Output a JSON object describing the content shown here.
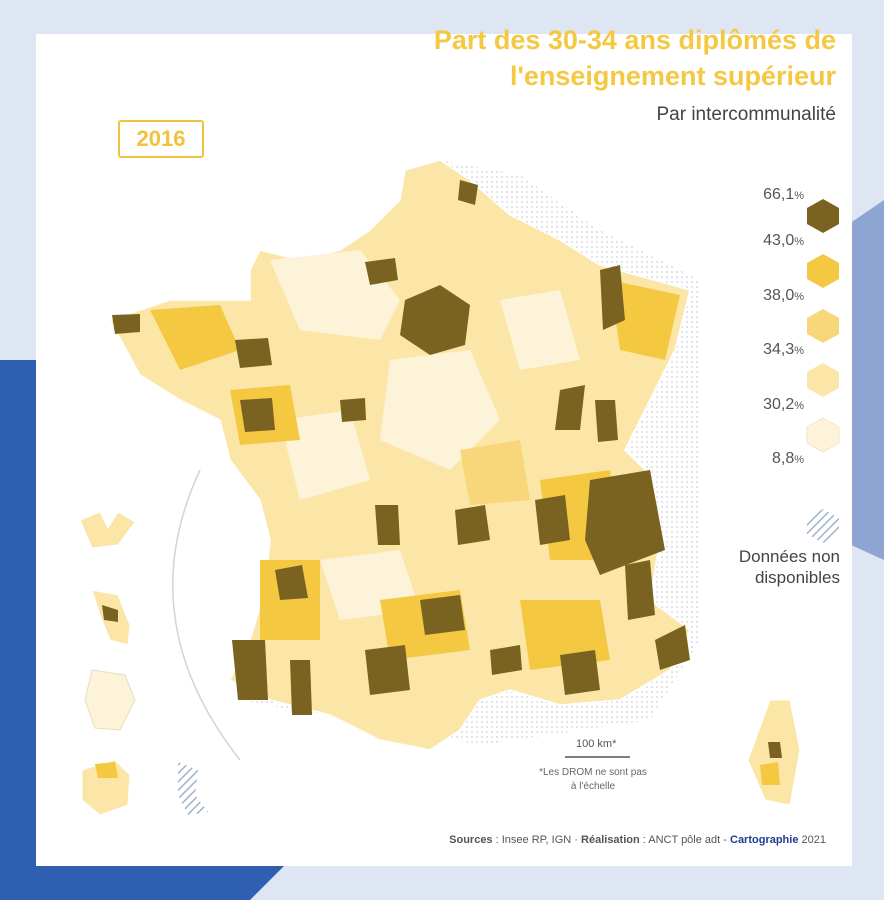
{
  "title_line1": "Part des 30-34 ans diplômés de",
  "title_line2": "l'enseignement supérieur",
  "subtitle": "Par intercommunalité",
  "year": "2016",
  "colors": {
    "title": "#f5c842",
    "class_1": "#7a6320",
    "class_2": "#f5c842",
    "class_3": "#f8d77a",
    "class_4": "#fbe6a8",
    "class_5": "#fdf3d8",
    "background_blue": "#2f5fb0",
    "background_light": "#dfe6f3"
  },
  "legend": {
    "breaks": [
      {
        "value": "66,1",
        "unit": "%"
      },
      {
        "value": "43,0",
        "unit": "%"
      },
      {
        "value": "38,0",
        "unit": "%"
      },
      {
        "value": "34,3",
        "unit": "%"
      },
      {
        "value": "30,2",
        "unit": "%"
      },
      {
        "value": "8,8",
        "unit": "%"
      }
    ],
    "no_data_line1": "Données non",
    "no_data_line2": "disponibles"
  },
  "scale": {
    "label": "100 km*"
  },
  "drom_note": "*Les DROM ne sont pas à l'échelle",
  "sources": {
    "label": "Sources",
    "value": " : Insee RP, IGN · ",
    "realisation_label": "Réalisation",
    "realisation_value": " : ANCT pôle adt - ",
    "brand": "Cartographie",
    "year": " 2021"
  }
}
